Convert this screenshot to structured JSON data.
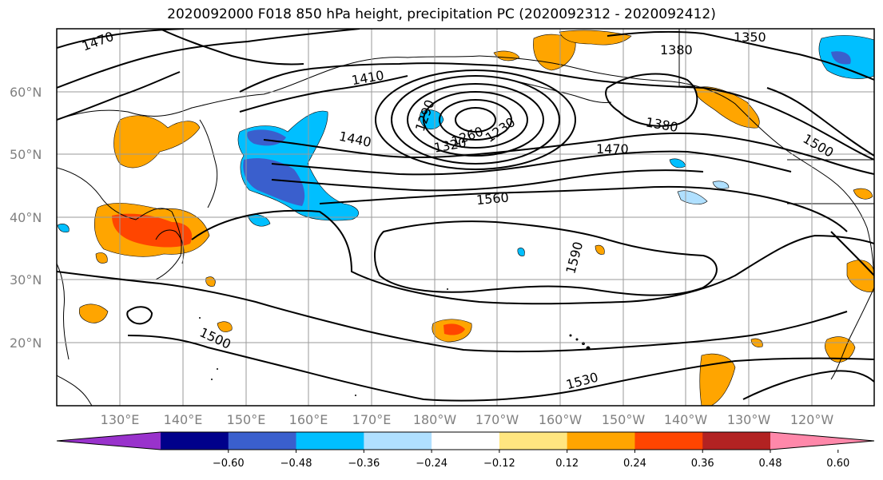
{
  "title": "2020092000 F018 850 hPa height, precipitation PC (2020092312 - 2020092412)",
  "lat_labels": [
    "60°N",
    "50°N",
    "40°N",
    "30°N",
    "20°N"
  ],
  "lon_labels": [
    "130°E",
    "140°E",
    "150°E",
    "160°E",
    "170°E",
    "180°W",
    "170°W",
    "160°W",
    "150°W",
    "140°W",
    "130°W",
    "120°W"
  ],
  "contour_labels": [
    "1470",
    "1410",
    "1350",
    "1380",
    "1290",
    "1320",
    "1260",
    "1230",
    "1380",
    "1440",
    "1470",
    "1500",
    "1560",
    "1590",
    "1500",
    "1530"
  ],
  "colorbar": {
    "ticks": [
      "−0.60",
      "−0.48",
      "−0.36",
      "−0.24",
      "−0.12",
      "0.12",
      "0.24",
      "0.36",
      "0.48",
      "0.60"
    ],
    "colors": [
      "#9932cc",
      "#00008b",
      "#3a5fcd",
      "#00bfff",
      "#b0e0ff",
      "#ffffff",
      "#ffe680",
      "#ffa500",
      "#ff4500",
      "#b22222",
      "#ff88aa"
    ]
  }
}
